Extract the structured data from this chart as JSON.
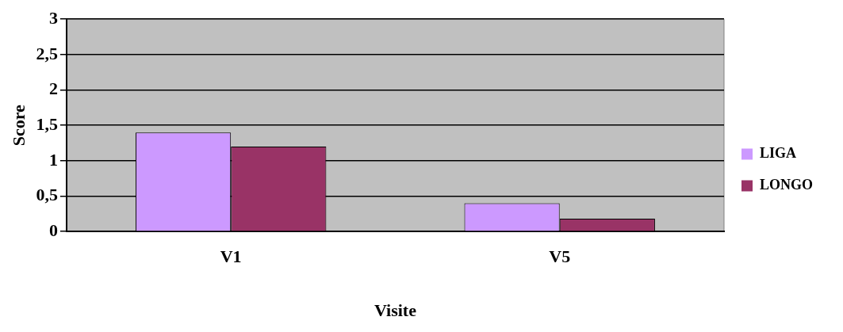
{
  "chart_data": {
    "type": "bar",
    "xlabel": "Visite",
    "ylabel": "Score",
    "categories": [
      "V1",
      "V5"
    ],
    "series": [
      {
        "name": "LIGA",
        "color": "#cc99ff",
        "values": [
          1.4,
          0.4
        ]
      },
      {
        "name": "LONGO",
        "color": "#993366",
        "values": [
          1.2,
          0.18
        ]
      }
    ],
    "ylim": [
      0,
      3
    ],
    "yticks": [
      0,
      {
        "value": 0.5,
        "label": "0,5"
      },
      1,
      {
        "value": 1.5,
        "label": "1,5"
      },
      2,
      {
        "value": 2.5,
        "label": "2,5"
      },
      3
    ],
    "grid": "y",
    "legend": "right"
  }
}
